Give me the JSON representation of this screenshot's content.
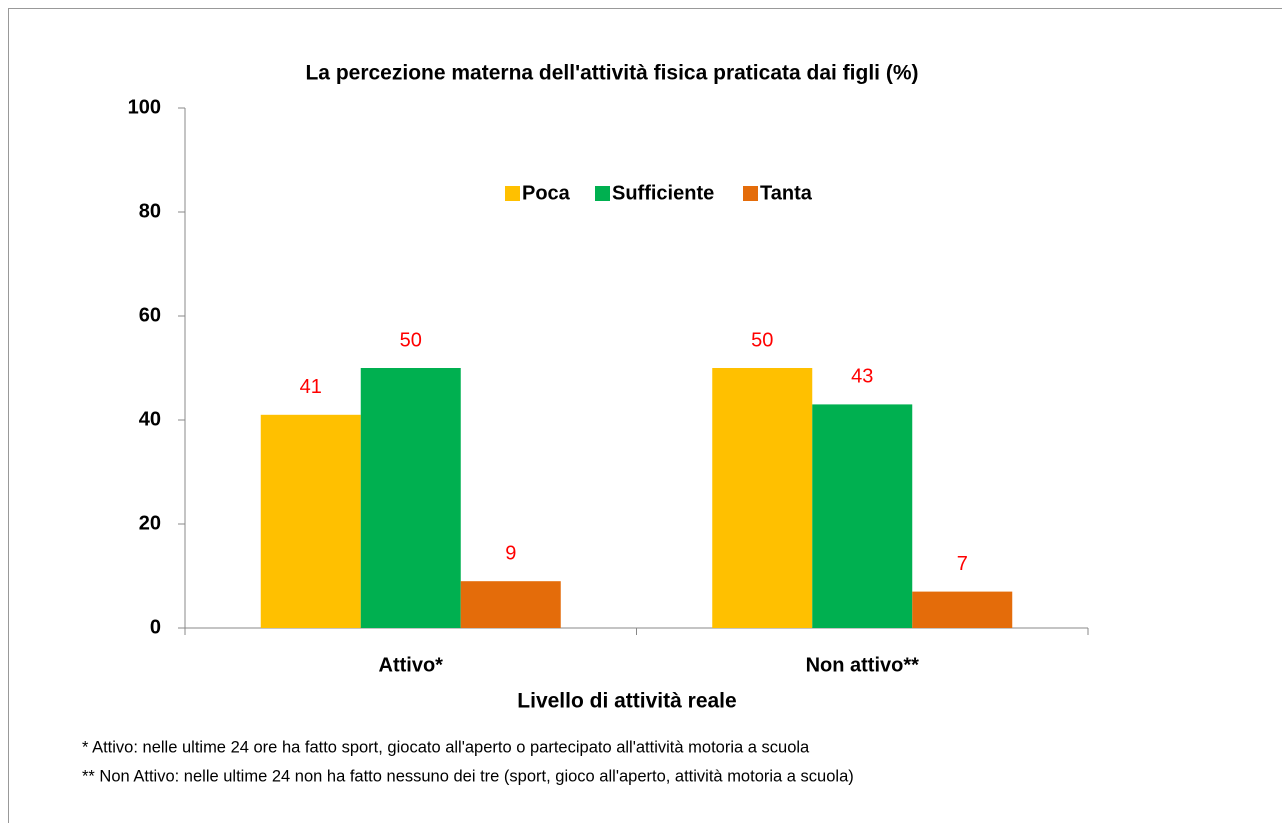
{
  "chart_data": {
    "type": "bar",
    "title": "La percezione materna dell'attività fisica praticata dai figli (%)",
    "categories": [
      "Attivo*",
      "Non attivo**"
    ],
    "series": [
      {
        "name": "Poca",
        "color": "#ffc000",
        "values": [
          41,
          50
        ]
      },
      {
        "name": "Sufficiente",
        "color": "#00b050",
        "values": [
          50,
          43
        ]
      },
      {
        "name": "Tanta",
        "color": "#e46c0a",
        "values": [
          9,
          7
        ]
      }
    ],
    "x_label": "Livello di attività reale",
    "ylim": [
      0,
      100
    ],
    "yticks": [
      0,
      20,
      40,
      60,
      80,
      100
    ],
    "legend": "top",
    "data_label_color": "#ff0000",
    "footnotes": [
      "* Attivo: nelle ultime 24 ore ha fatto sport, giocato all'aperto o partecipato all'attività motoria a scuola",
      "** Non Attivo: nelle ultime 24 non ha fatto nessuno dei tre (sport, gioco all'aperto, attività motoria a scuola)"
    ]
  }
}
